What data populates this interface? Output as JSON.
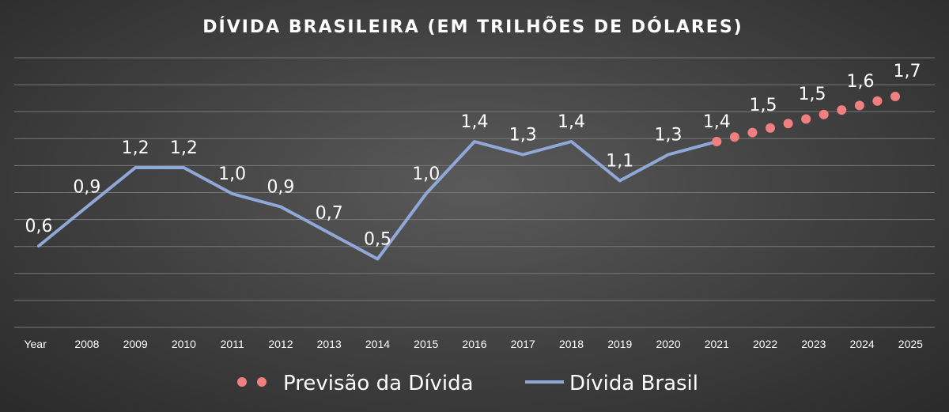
{
  "chart_data": {
    "type": "line",
    "title": "DÍVIDA BRASILEIRA (EM  TRILHÕES DE DÓLARES)",
    "categories": [
      "Year",
      "2008",
      "2009",
      "2010",
      "2011",
      "2012",
      "2013",
      "2014",
      "2015",
      "2016",
      "2017",
      "2018",
      "2019",
      "2020",
      "2021",
      "2022",
      "2023",
      "2024",
      "2025"
    ],
    "ylim": [
      0,
      1.7
    ],
    "grid": true,
    "legend_position": "bottom",
    "series": [
      {
        "name": "Dívida Brasil",
        "style": "line",
        "color": "#8fa8d8",
        "points": [
          {
            "x": "Year",
            "y": 0.6,
            "label": "0,6"
          },
          {
            "x": "2008",
            "y": 0.9,
            "label": "0,9"
          },
          {
            "x": "2009",
            "y": 1.2,
            "label": "1,2"
          },
          {
            "x": "2010",
            "y": 1.2,
            "label": "1,2"
          },
          {
            "x": "2011",
            "y": 1.0,
            "label": "1,0"
          },
          {
            "x": "2012",
            "y": 0.9,
            "label": "0,9"
          },
          {
            "x": "2013",
            "y": 0.7,
            "label": "0,7"
          },
          {
            "x": "2014",
            "y": 0.5,
            "label": "0,5"
          },
          {
            "x": "2015",
            "y": 1.0,
            "label": "1,0"
          },
          {
            "x": "2016",
            "y": 1.4,
            "label": "1,4"
          },
          {
            "x": "2017",
            "y": 1.3,
            "label": "1,3"
          },
          {
            "x": "2018",
            "y": 1.4,
            "label": "1,4"
          },
          {
            "x": "2019",
            "y": 1.1,
            "label": "1,1"
          },
          {
            "x": "2020",
            "y": 1.3,
            "label": "1,3"
          },
          {
            "x": "2021",
            "y": 1.4,
            "label": "1,4"
          }
        ]
      },
      {
        "name": "Previsão da Dívida",
        "style": "dots",
        "color": "#f08080",
        "points": [
          {
            "x": "2021",
            "y": 1.4
          },
          {
            "x": "2022",
            "y": 1.5,
            "label": "1,5"
          },
          {
            "x": "2023",
            "y": 1.5,
            "label": "1,5"
          },
          {
            "x": "2024",
            "y": 1.6,
            "label": "1,6"
          },
          {
            "x": "2025",
            "y": 1.7,
            "label": "1,7"
          }
        ]
      }
    ]
  }
}
